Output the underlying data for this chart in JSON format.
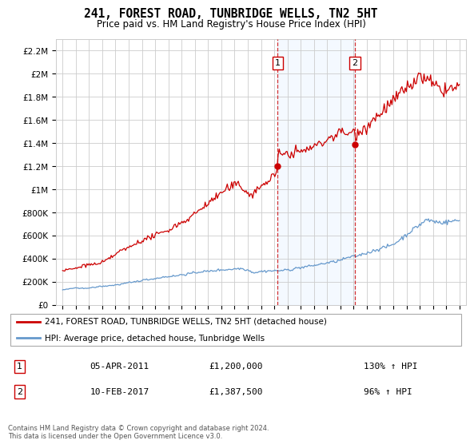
{
  "title": "241, FOREST ROAD, TUNBRIDGE WELLS, TN2 5HT",
  "subtitle": "Price paid vs. HM Land Registry's House Price Index (HPI)",
  "ylabel_ticks": [
    "£0",
    "£200K",
    "£400K",
    "£600K",
    "£800K",
    "£1M",
    "£1.2M",
    "£1.4M",
    "£1.6M",
    "£1.8M",
    "£2M",
    "£2.2M"
  ],
  "ylabel_values": [
    0,
    200000,
    400000,
    600000,
    800000,
    1000000,
    1200000,
    1400000,
    1600000,
    1800000,
    2000000,
    2200000
  ],
  "hpi_color": "#6699cc",
  "price_color": "#cc0000",
  "sale1_date": 2011.26,
  "sale1_price": 1200000,
  "sale2_date": 2017.11,
  "sale2_price": 1387500,
  "background_color": "#ffffff",
  "plot_bg_color": "#ffffff",
  "grid_color": "#cccccc",
  "highlight_color": "#ddeeff",
  "legend1": "241, FOREST ROAD, TUNBRIDGE WELLS, TN2 5HT (detached house)",
  "legend2": "HPI: Average price, detached house, Tunbridge Wells",
  "table_row1_num": "1",
  "table_row1_date": "05-APR-2011",
  "table_row1_price": "£1,200,000",
  "table_row1_hpi": "130% ↑ HPI",
  "table_row2_num": "2",
  "table_row2_date": "10-FEB-2017",
  "table_row2_price": "£1,387,500",
  "table_row2_hpi": "96% ↑ HPI",
  "footer": "Contains HM Land Registry data © Crown copyright and database right 2024.\nThis data is licensed under the Open Government Licence v3.0.",
  "xmin": 1994.5,
  "xmax": 2025.5,
  "ymin": 0,
  "ymax": 2300000
}
